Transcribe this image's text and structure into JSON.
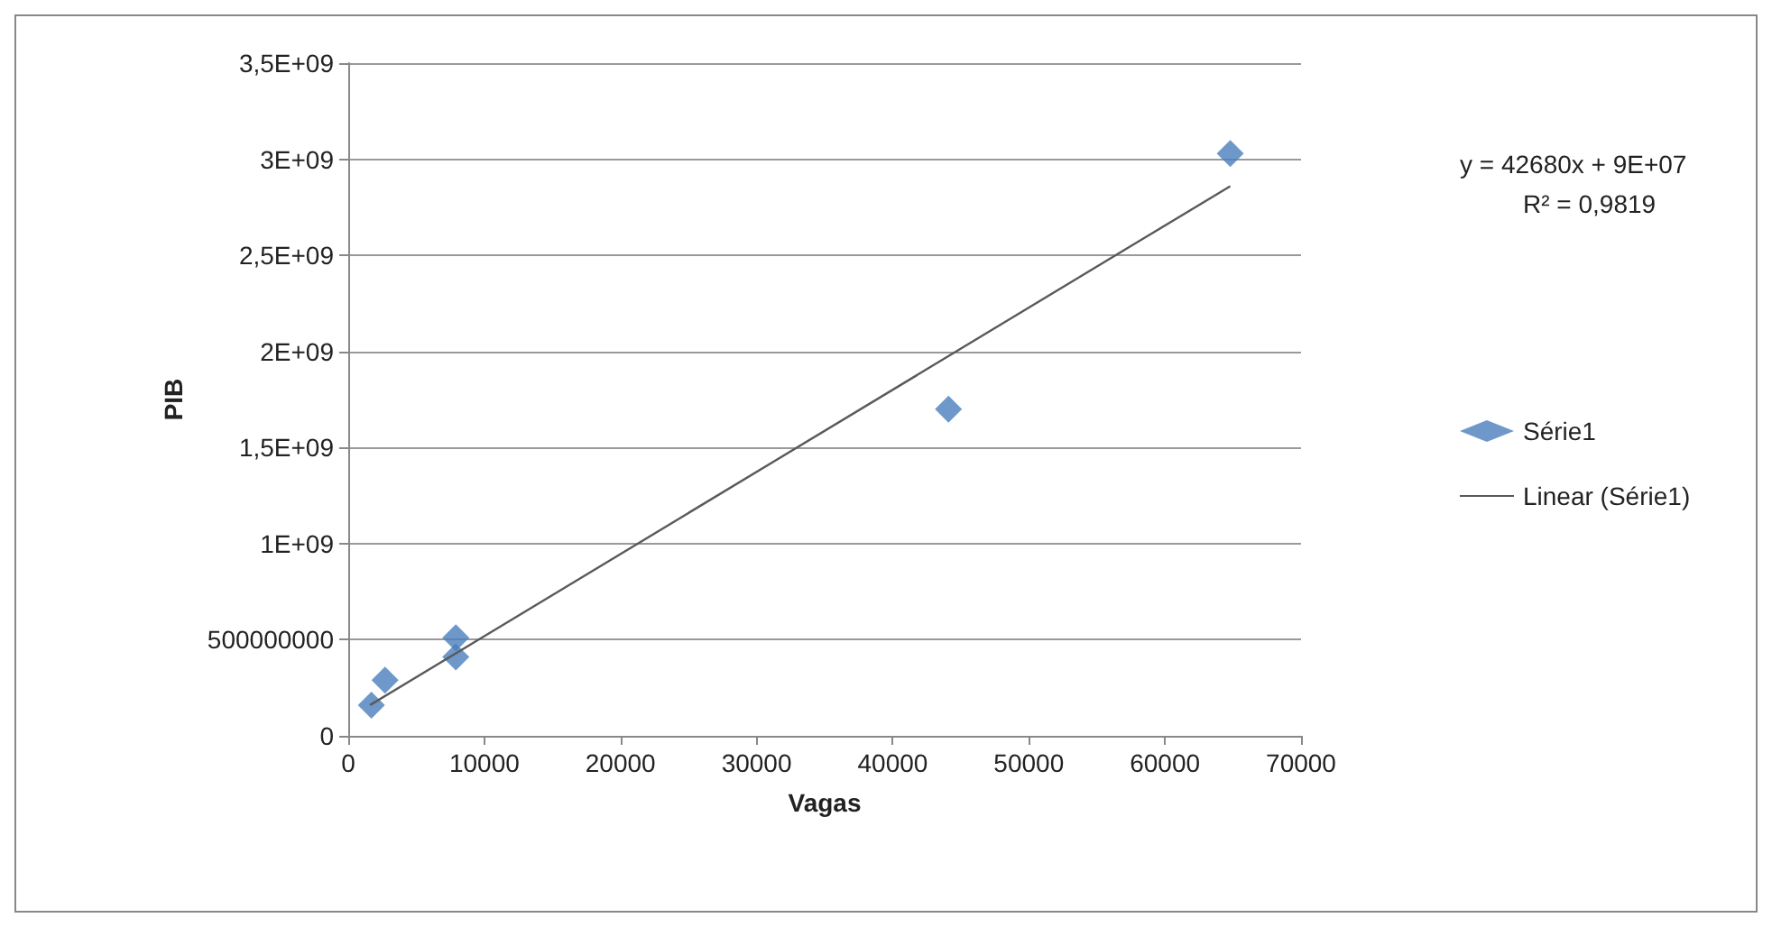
{
  "chart_data": {
    "type": "scatter",
    "xlabel": "Vagas",
    "ylabel": "PIB",
    "xlim": [
      0,
      70000
    ],
    "xticks": [
      0,
      10000,
      20000,
      30000,
      40000,
      50000,
      60000,
      70000
    ],
    "ylim": [
      0,
      3500000000
    ],
    "yticks": [
      0,
      {
        "value": 500000000,
        "label": "500000000"
      },
      {
        "value": 1000000000,
        "label": "1E+09"
      },
      {
        "value": 1500000000,
        "label": "1,5E+09"
      },
      {
        "value": 2000000000,
        "label": "2E+09"
      },
      {
        "value": 2500000000,
        "label": "2,5E+09"
      },
      {
        "value": 3000000000,
        "label": "3E+09"
      },
      {
        "value": 3500000000,
        "label": "3,5E+09"
      }
    ],
    "grid": "y",
    "legend": "right",
    "annotations": [
      "y = 42680x + 9E+07",
      "R² = 0,9819"
    ],
    "series": [
      {
        "name": "Série1",
        "marker": "diamond",
        "color": "#4a7ebb",
        "x": [
          1700,
          2700,
          7900,
          7900,
          44100,
          64800
        ],
        "values": [
          160000000,
          290000000,
          410000000,
          510000000,
          1700000000,
          3030000000
        ]
      },
      {
        "name": "Linear (Série1)",
        "type": "line",
        "marker": "none",
        "color": "#595959",
        "x": [
          1600,
          64800
        ],
        "values": [
          160000000,
          2860000000
        ]
      }
    ]
  }
}
